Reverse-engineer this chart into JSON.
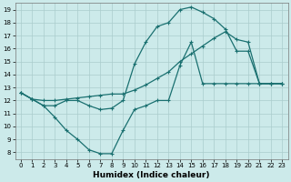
{
  "xlabel": "Humidex (Indice chaleur)",
  "bg_color": "#cceaea",
  "line_color": "#1a7070",
  "grid_color": "#aacccc",
  "xlim": [
    -0.5,
    23.5
  ],
  "ylim": [
    7.5,
    19.5
  ],
  "xticks": [
    0,
    1,
    2,
    3,
    4,
    5,
    6,
    7,
    8,
    9,
    10,
    11,
    12,
    13,
    14,
    15,
    16,
    17,
    18,
    19,
    20,
    21,
    22,
    23
  ],
  "yticks": [
    8,
    9,
    10,
    11,
    12,
    13,
    14,
    15,
    16,
    17,
    18,
    19
  ],
  "line1_x": [
    0,
    1,
    2,
    3,
    4,
    5,
    6,
    7,
    8,
    9,
    10,
    11,
    12,
    13,
    14,
    15,
    16,
    17,
    18,
    19,
    20,
    21,
    22,
    23
  ],
  "line1_y": [
    12.6,
    12.1,
    11.6,
    10.7,
    9.7,
    9.0,
    8.2,
    7.9,
    7.9,
    9.7,
    11.3,
    11.6,
    12.0,
    12.0,
    14.7,
    16.5,
    13.3,
    13.3,
    13.3,
    13.3,
    13.3,
    13.3,
    13.3,
    13.3
  ],
  "line2_x": [
    0,
    1,
    2,
    3,
    4,
    5,
    6,
    7,
    8,
    9,
    10,
    11,
    12,
    13,
    14,
    15,
    16,
    17,
    18,
    19,
    20,
    21,
    22,
    23
  ],
  "line2_y": [
    12.6,
    12.1,
    12.0,
    12.0,
    12.1,
    12.2,
    12.3,
    12.4,
    12.5,
    12.5,
    12.8,
    13.2,
    13.7,
    14.2,
    15.0,
    15.6,
    16.2,
    16.8,
    17.3,
    16.7,
    16.5,
    13.3,
    13.3,
    13.3
  ],
  "line3_x": [
    0,
    1,
    2,
    3,
    4,
    5,
    6,
    7,
    8,
    9,
    10,
    11,
    12,
    13,
    14,
    15,
    16,
    17,
    18,
    19,
    20,
    21,
    22,
    23
  ],
  "line3_y": [
    12.6,
    12.1,
    11.6,
    11.6,
    12.0,
    12.0,
    11.6,
    11.3,
    11.4,
    12.0,
    14.8,
    16.5,
    17.7,
    18.0,
    19.0,
    19.2,
    18.8,
    18.3,
    17.5,
    15.8,
    15.8,
    13.3,
    13.3,
    13.3
  ]
}
